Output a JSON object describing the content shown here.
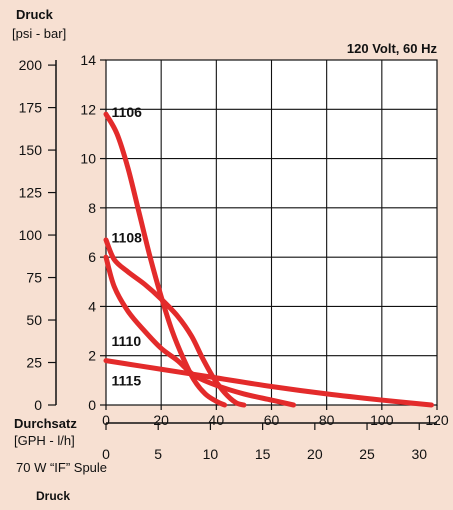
{
  "chart_data": {
    "type": "line",
    "title": "120 Volt, 60 Hz",
    "footnote": "70 W “IF” Spule",
    "footer_label": "Druck",
    "y_left": {
      "label": "Druck",
      "unit_label": "[psi - bar]",
      "bar_ticks": [
        "0",
        "2",
        "4",
        "6",
        "8",
        "10",
        "12",
        "14"
      ],
      "psi_ticks": [
        "0",
        "25",
        "50",
        "75",
        "100",
        "125",
        "150",
        "175",
        "200"
      ],
      "range_bar": [
        0,
        14
      ],
      "range_psi": [
        0,
        203
      ]
    },
    "x_bottom": {
      "label": "Durchsatz",
      "unit_label": "[GPH - l/h]",
      "lph_ticks": [
        "0",
        "20",
        "40",
        "60",
        "80",
        "100",
        "120"
      ],
      "gph_ticks": [
        "0",
        "5",
        "10",
        "15",
        "20",
        "25",
        "30"
      ],
      "range_lph": [
        0,
        120
      ],
      "range_gph": [
        0,
        31.7
      ]
    },
    "grid": true,
    "series": [
      {
        "name": "1106",
        "x_unit": "l/h",
        "y_unit": "bar",
        "points": [
          [
            0,
            11.8
          ],
          [
            4,
            11.0
          ],
          [
            8,
            9.6
          ],
          [
            12,
            7.8
          ],
          [
            16,
            6.0
          ],
          [
            20,
            4.4
          ],
          [
            24,
            3.0
          ],
          [
            28,
            1.9
          ],
          [
            32,
            1.0
          ],
          [
            36,
            0.45
          ],
          [
            40,
            0.15
          ],
          [
            43,
            0.0
          ]
        ]
      },
      {
        "name": "1108",
        "x_unit": "l/h",
        "y_unit": "bar",
        "points": [
          [
            0,
            6.7
          ],
          [
            3,
            5.9
          ],
          [
            8,
            5.4
          ],
          [
            14,
            4.9
          ],
          [
            20,
            4.3
          ],
          [
            26,
            3.6
          ],
          [
            31,
            2.8
          ],
          [
            35,
            1.9
          ],
          [
            39,
            1.1
          ],
          [
            43,
            0.5
          ],
          [
            47,
            0.1
          ],
          [
            50,
            0.0
          ]
        ]
      },
      {
        "name": "1110",
        "x_unit": "l/h",
        "y_unit": "bar",
        "points": [
          [
            0,
            6.0
          ],
          [
            3,
            4.8
          ],
          [
            8,
            3.8
          ],
          [
            14,
            3.0
          ],
          [
            20,
            2.3
          ],
          [
            26,
            1.8
          ],
          [
            32,
            1.2
          ],
          [
            40,
            0.8
          ],
          [
            50,
            0.45
          ],
          [
            60,
            0.2
          ],
          [
            68,
            0.0
          ]
        ]
      },
      {
        "name": "1115",
        "x_unit": "l/h",
        "y_unit": "bar",
        "points": [
          [
            0,
            1.8
          ],
          [
            20,
            1.45
          ],
          [
            40,
            1.1
          ],
          [
            60,
            0.75
          ],
          [
            80,
            0.45
          ],
          [
            100,
            0.2
          ],
          [
            118,
            0.0
          ]
        ]
      }
    ],
    "colors": {
      "background": "#f7e0d2",
      "curve": "#e32b2b",
      "grid": "#111111"
    }
  }
}
